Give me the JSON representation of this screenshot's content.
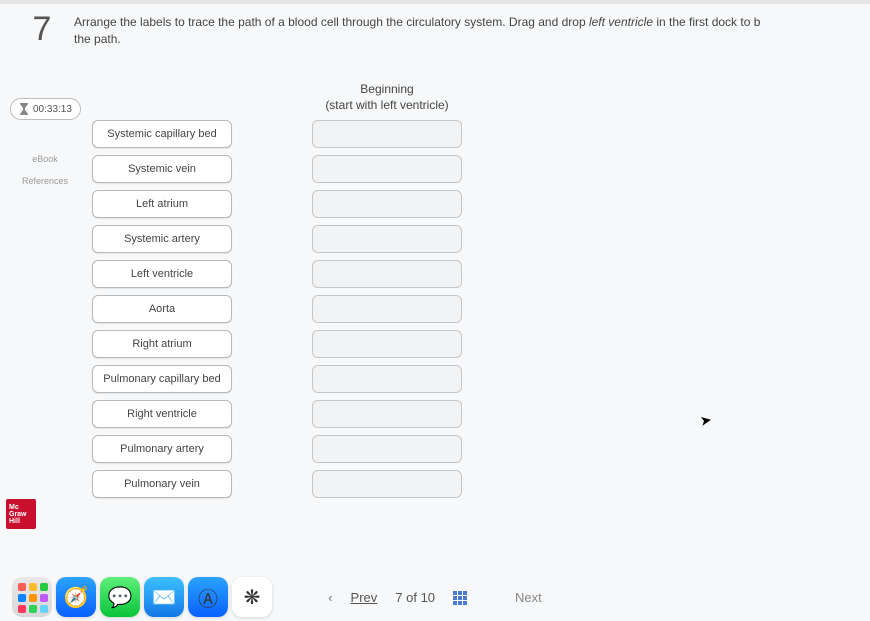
{
  "question": {
    "number": "7",
    "prompt_before": "Arrange the labels to trace the path of a blood cell through the circulatory system. Drag and drop ",
    "prompt_italic": "left ventricle",
    "prompt_after": " in the first dock to b",
    "prompt_line2": "the path."
  },
  "timer": {
    "value": "00:33:13"
  },
  "rail": {
    "ebook": "eBook",
    "references": "References"
  },
  "drop_header": {
    "line1": "Beginning",
    "line2": "(start with left ventricle)"
  },
  "labels": [
    "Systemic capillary bed",
    "Systemic vein",
    "Left atrium",
    "Systemic artery",
    "Left ventricle",
    "Aorta",
    "Right atrium",
    "Pulmonary capillary bed",
    "Right ventricle",
    "Pulmonary artery",
    "Pulmonary vein"
  ],
  "slot_count": 11,
  "logo": {
    "l1": "Mc",
    "l2": "Graw",
    "l3": "Hill"
  },
  "nav": {
    "prev": "Prev",
    "position": "7 of 10",
    "next": "Next"
  },
  "launchpad_colors": [
    "#ff5f57",
    "#ffbd2e",
    "#28c840",
    "#0a84ff",
    "#ff9500",
    "#bf5af2",
    "#ff375f",
    "#30d158",
    "#64d2ff"
  ],
  "dock_items": [
    {
      "name": "safari",
      "bg": "linear-gradient(#2aa3ff,#0a60ff)",
      "glyph": "🧭"
    },
    {
      "name": "messages",
      "bg": "linear-gradient(#5ef07a,#0bc33b)",
      "glyph": "💬"
    },
    {
      "name": "mail",
      "bg": "linear-gradient(#3cc1ff,#1477e6)",
      "glyph": "✉️"
    },
    {
      "name": "appstore",
      "bg": "linear-gradient(#2aa3ff,#0a60ff)",
      "glyph": "Ⓐ"
    },
    {
      "name": "photos",
      "bg": "#ffffff",
      "glyph": "❋"
    }
  ],
  "colors": {
    "page_bg": "#f7f8f9",
    "chip_bg": "#ffffff",
    "chip_border": "#b8b8b8",
    "slot_bg": "#f2f3f4",
    "slot_border": "#c6c6c6",
    "logo_bg": "#c8102e",
    "grid_icon": "#4a7bd0"
  }
}
